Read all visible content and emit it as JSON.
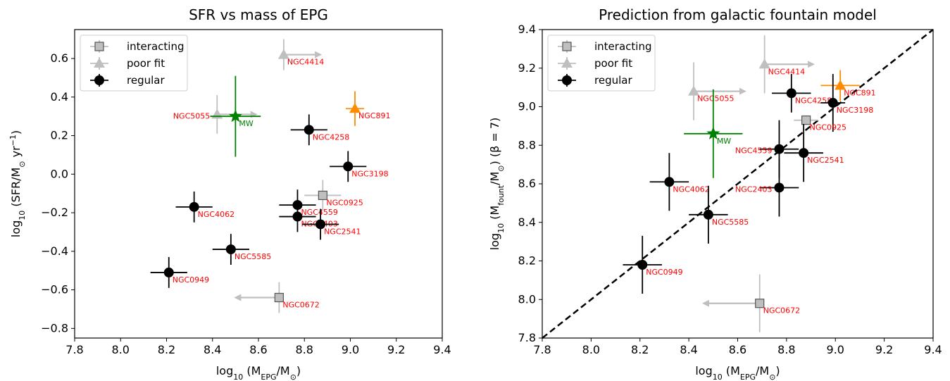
{
  "colors": {
    "regular": "#000000",
    "interacting": "#bfbfbf",
    "poorfit": "#bfbfbf",
    "mw": "#008000",
    "ngc891": "#ff8c00",
    "label": "#ff0000"
  },
  "chart_data": [
    {
      "type": "scatter",
      "title": "SFR vs mass of EPG",
      "xlabel_parts": [
        "log",
        "10",
        " (M",
        "EPG",
        "/M",
        "⊙",
        ")"
      ],
      "ylabel_parts": [
        "log",
        "10",
        " (SFR/M",
        "⊙",
        " yr",
        "−1",
        ")"
      ],
      "xlim": [
        7.8,
        9.4
      ],
      "ylim": [
        -0.85,
        0.75
      ],
      "xticks": [
        "7.8",
        "8.0",
        "8.2",
        "8.4",
        "8.6",
        "8.8",
        "9.0",
        "9.2",
        "9.4"
      ],
      "yticks": [
        "−0.8",
        "−0.6",
        "−0.4",
        "−0.2",
        "0.0",
        "0.2",
        "0.4",
        "0.6"
      ],
      "xtick_values": [
        7.8,
        8.0,
        8.2,
        8.4,
        8.6,
        8.8,
        9.0,
        9.2,
        9.4
      ],
      "ytick_values": [
        -0.8,
        -0.6,
        -0.4,
        -0.2,
        0.0,
        0.2,
        0.4,
        0.6
      ],
      "legend_position": "top-left",
      "legend": [
        {
          "label": "interacting",
          "marker": "square",
          "color_key": "interacting"
        },
        {
          "label": "poor fit",
          "marker": "triangle",
          "color_key": "poorfit"
        },
        {
          "label": "regular",
          "marker": "circle",
          "color_key": "regular"
        }
      ],
      "points": [
        {
          "label": "NGC4414",
          "x": 8.71,
          "y": 0.62,
          "xerr": 0.0,
          "yerr": 0.08,
          "marker": "triangle",
          "color_key": "poorfit",
          "arrow": "right",
          "arrow_to": 8.87
        },
        {
          "label": "NGC5055",
          "x": 8.42,
          "y": 0.31,
          "xerr": 0.0,
          "yerr": 0.1,
          "marker": "triangle",
          "color_key": "poorfit",
          "arrow": "right",
          "arrow_to": 8.59,
          "label_side": "left"
        },
        {
          "label": "MW",
          "x": 8.5,
          "y": 0.3,
          "xerr": 0.11,
          "yerr": 0.21,
          "marker": "star",
          "color_key": "mw"
        },
        {
          "label": "NGC891",
          "x": 9.02,
          "y": 0.34,
          "xerr": 0.04,
          "yerr": 0.09,
          "marker": "triangle",
          "color_key": "ngc891"
        },
        {
          "label": "NGC4258",
          "x": 8.82,
          "y": 0.23,
          "xerr": 0.08,
          "yerr": 0.08,
          "marker": "circle",
          "color_key": "regular"
        },
        {
          "label": "NGC3198",
          "x": 8.99,
          "y": 0.04,
          "xerr": 0.08,
          "yerr": 0.08,
          "marker": "circle",
          "color_key": "regular"
        },
        {
          "label": "NGC0925",
          "x": 8.88,
          "y": -0.11,
          "xerr": 0.08,
          "yerr": 0.08,
          "marker": "square",
          "color_key": "interacting"
        },
        {
          "label": "NGC4062",
          "x": 8.32,
          "y": -0.17,
          "xerr": 0.08,
          "yerr": 0.08,
          "marker": "circle",
          "color_key": "regular"
        },
        {
          "label": "NGC4559",
          "x": 8.77,
          "y": -0.16,
          "xerr": 0.08,
          "yerr": 0.08,
          "marker": "circle",
          "color_key": "regular"
        },
        {
          "label": "NGC2403",
          "x": 8.77,
          "y": -0.22,
          "xerr": 0.08,
          "yerr": 0.08,
          "marker": "circle",
          "color_key": "regular"
        },
        {
          "label": "NGC2541",
          "x": 8.87,
          "y": -0.26,
          "xerr": 0.08,
          "yerr": 0.08,
          "marker": "circle",
          "color_key": "regular"
        },
        {
          "label": "NGC5585",
          "x": 8.48,
          "y": -0.39,
          "xerr": 0.08,
          "yerr": 0.08,
          "marker": "circle",
          "color_key": "regular"
        },
        {
          "label": "NGC0949",
          "x": 8.21,
          "y": -0.51,
          "xerr": 0.08,
          "yerr": 0.08,
          "marker": "circle",
          "color_key": "regular"
        },
        {
          "label": "NGC0672",
          "x": 8.69,
          "y": -0.64,
          "xerr": 0.0,
          "yerr": 0.08,
          "marker": "square",
          "color_key": "interacting",
          "arrow": "left",
          "arrow_to": 8.5
        }
      ]
    },
    {
      "type": "scatter",
      "title": "Prediction from galactic fountain model",
      "xlabel_parts": [
        "log",
        "10",
        " (M",
        "EPG",
        "/M",
        "⊙",
        ")"
      ],
      "ylabel_parts": [
        "log",
        "10",
        " (M",
        "fount",
        "/M",
        "⊙",
        ") (β = 7)"
      ],
      "xlim": [
        7.8,
        9.4
      ],
      "ylim": [
        7.8,
        9.4
      ],
      "xticks": [
        "7.8",
        "8.0",
        "8.2",
        "8.4",
        "8.6",
        "8.8",
        "9.0",
        "9.2",
        "9.4"
      ],
      "yticks": [
        "7.8",
        "8.0",
        "8.2",
        "8.4",
        "8.6",
        "8.8",
        "9.0",
        "9.2",
        "9.4"
      ],
      "xtick_values": [
        7.8,
        8.0,
        8.2,
        8.4,
        8.6,
        8.8,
        9.0,
        9.2,
        9.4
      ],
      "ytick_values": [
        7.8,
        8.0,
        8.2,
        8.4,
        8.6,
        8.8,
        9.0,
        9.2,
        9.4
      ],
      "one_to_one_line": true,
      "legend_position": "top-left",
      "legend": [
        {
          "label": "interacting",
          "marker": "square",
          "color_key": "interacting"
        },
        {
          "label": "poor fit",
          "marker": "triangle",
          "color_key": "poorfit"
        },
        {
          "label": "regular",
          "marker": "circle",
          "color_key": "regular"
        }
      ],
      "points": [
        {
          "label": "NGC4414",
          "x": 8.71,
          "y": 9.22,
          "xerr": 0.0,
          "yerr": 0.15,
          "marker": "triangle",
          "color_key": "poorfit",
          "arrow": "right",
          "arrow_to": 8.91
        },
        {
          "label": "NGC5055",
          "x": 8.42,
          "y": 9.08,
          "xerr": 0.0,
          "yerr": 0.15,
          "marker": "triangle",
          "color_key": "poorfit",
          "arrow": "right",
          "arrow_to": 8.63
        },
        {
          "label": "NGC891",
          "x": 9.02,
          "y": 9.11,
          "xerr": 0.08,
          "yerr": 0.08,
          "marker": "triangle",
          "color_key": "ngc891"
        },
        {
          "label": "NGC4258",
          "x": 8.82,
          "y": 9.07,
          "xerr": 0.08,
          "yerr": 0.1,
          "marker": "circle",
          "color_key": "regular"
        },
        {
          "label": "NGC3198",
          "x": 8.99,
          "y": 9.02,
          "xerr": 0.05,
          "yerr": 0.15,
          "marker": "circle",
          "color_key": "regular"
        },
        {
          "label": "NGC0925",
          "x": 8.88,
          "y": 8.93,
          "xerr": 0.05,
          "yerr": 0.0,
          "marker": "square",
          "color_key": "interacting"
        },
        {
          "label": "MW",
          "x": 8.5,
          "y": 8.86,
          "xerr": 0.12,
          "yerr": 0.23,
          "marker": "star",
          "color_key": "mw"
        },
        {
          "label": "NGC4559",
          "x": 8.77,
          "y": 8.78,
          "xerr": 0.08,
          "yerr": 0.15,
          "marker": "circle",
          "color_key": "regular",
          "label_side": "left"
        },
        {
          "label": "NGC2541",
          "x": 8.87,
          "y": 8.76,
          "xerr": 0.08,
          "yerr": 0.15,
          "marker": "circle",
          "color_key": "regular"
        },
        {
          "label": "NGC4062",
          "x": 8.32,
          "y": 8.61,
          "xerr": 0.08,
          "yerr": 0.15,
          "marker": "circle",
          "color_key": "regular"
        },
        {
          "label": "NGC2403",
          "x": 8.77,
          "y": 8.58,
          "xerr": 0.08,
          "yerr": 0.15,
          "marker": "circle",
          "color_key": "regular",
          "label_side": "left"
        },
        {
          "label": "NGC5585",
          "x": 8.48,
          "y": 8.44,
          "xerr": 0.08,
          "yerr": 0.15,
          "marker": "circle",
          "color_key": "regular"
        },
        {
          "label": "NGC0949",
          "x": 8.21,
          "y": 8.18,
          "xerr": 0.08,
          "yerr": 0.15,
          "marker": "circle",
          "color_key": "regular"
        },
        {
          "label": "NGC0672",
          "x": 8.69,
          "y": 7.98,
          "xerr": 0.0,
          "yerr": 0.15,
          "marker": "square",
          "color_key": "interacting",
          "arrow": "left",
          "arrow_to": 8.46
        }
      ]
    }
  ]
}
